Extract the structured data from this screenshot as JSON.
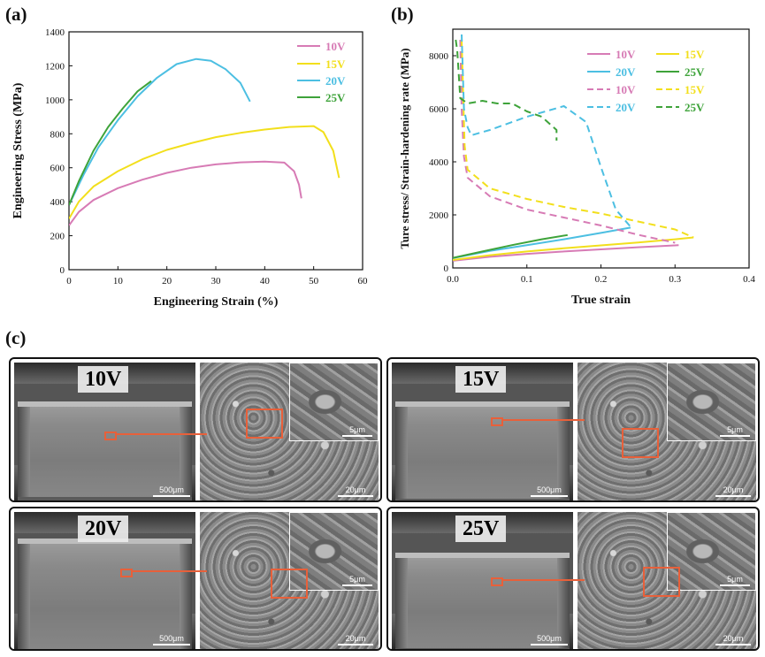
{
  "panels": {
    "a": {
      "label": "(a)"
    },
    "b": {
      "label": "(b)"
    },
    "c": {
      "label": "(c)"
    }
  },
  "colors": {
    "10V": "#d77bb5",
    "15V": "#f2df1c",
    "20V": "#4cbfe2",
    "25V": "#3ea33a",
    "orange": "#e8603a"
  },
  "chart_data": [
    {
      "type": "line",
      "xlabel": "Engineering Strain (%)",
      "ylabel": "Engineering Stress (MPa)",
      "xlim": [
        0,
        60
      ],
      "ylim": [
        0,
        1400
      ],
      "xticks": [
        "0",
        "10",
        "20",
        "30",
        "40",
        "50",
        "60"
      ],
      "yticks": [
        "0",
        "200",
        "400",
        "600",
        "800",
        "1000",
        "1200",
        "1400"
      ],
      "legend": "top-right",
      "series": [
        {
          "name": "10V",
          "x": [
            0,
            2,
            5,
            10,
            15,
            20,
            25,
            30,
            35,
            40,
            44,
            46,
            47,
            47.5
          ],
          "y": [
            260,
            340,
            410,
            480,
            530,
            570,
            600,
            620,
            632,
            636,
            630,
            580,
            500,
            420
          ]
        },
        {
          "name": "15V",
          "x": [
            0,
            2,
            5,
            10,
            15,
            20,
            25,
            30,
            35,
            40,
            45,
            50,
            52,
            54,
            55.2
          ],
          "y": [
            300,
            400,
            490,
            580,
            650,
            705,
            745,
            780,
            805,
            825,
            840,
            845,
            810,
            700,
            540
          ]
        },
        {
          "name": "20V",
          "x": [
            0,
            3,
            6,
            10,
            14,
            18,
            22,
            26,
            29,
            32,
            35,
            37
          ],
          "y": [
            380,
            560,
            720,
            880,
            1020,
            1130,
            1210,
            1240,
            1230,
            1180,
            1100,
            990
          ]
        },
        {
          "name": "25V",
          "x": [
            0,
            2,
            5,
            8,
            11,
            14,
            16.8
          ],
          "y": [
            380,
            520,
            700,
            840,
            950,
            1050,
            1110
          ]
        }
      ]
    },
    {
      "type": "line",
      "xlabel": "True strain",
      "ylabel": "Ture stress/ Strain-hardening rate (MPa)",
      "xlim": [
        0,
        0.4
      ],
      "ylim": [
        0,
        9000
      ],
      "xticks": [
        "0.0",
        "0.1",
        "0.2",
        "0.3",
        "0.4"
      ],
      "yticks": [
        "0",
        "2000",
        "4000",
        "6000",
        "8000"
      ],
      "legend": "top-right",
      "series": [
        {
          "name": "10V",
          "style": "solid",
          "x": [
            0,
            0.05,
            0.1,
            0.15,
            0.2,
            0.25,
            0.3,
            0.305
          ],
          "y": [
            270,
            420,
            530,
            620,
            700,
            780,
            850,
            860
          ]
        },
        {
          "name": "15V",
          "style": "solid",
          "x": [
            0,
            0.05,
            0.1,
            0.15,
            0.2,
            0.25,
            0.3,
            0.325
          ],
          "y": [
            300,
            480,
            620,
            740,
            850,
            960,
            1080,
            1150
          ]
        },
        {
          "name": "20V",
          "style": "solid",
          "x": [
            0,
            0.05,
            0.1,
            0.15,
            0.2,
            0.24
          ],
          "y": [
            370,
            640,
            860,
            1080,
            1320,
            1520
          ]
        },
        {
          "name": "25V",
          "style": "solid",
          "x": [
            0,
            0.04,
            0.08,
            0.12,
            0.155
          ],
          "y": [
            380,
            620,
            860,
            1080,
            1240
          ]
        },
        {
          "name": "10V",
          "style": "dashed",
          "x": [
            0.01,
            0.012,
            0.015,
            0.02,
            0.05,
            0.1,
            0.15,
            0.2,
            0.25,
            0.3
          ],
          "y": [
            8600,
            6000,
            4200,
            3400,
            2700,
            2200,
            1900,
            1600,
            1250,
            950
          ]
        },
        {
          "name": "15V",
          "style": "dashed",
          "x": [
            0.012,
            0.014,
            0.016,
            0.02,
            0.05,
            0.1,
            0.15,
            0.2,
            0.25,
            0.3,
            0.325
          ],
          "y": [
            8600,
            6500,
            4600,
            3700,
            3000,
            2600,
            2300,
            2050,
            1750,
            1450,
            1150
          ]
        },
        {
          "name": "20V",
          "style": "dashed",
          "x": [
            0.012,
            0.015,
            0.02,
            0.025,
            0.05,
            0.1,
            0.15,
            0.18,
            0.2,
            0.22,
            0.24
          ],
          "y": [
            8800,
            6000,
            5300,
            5000,
            5200,
            5700,
            6100,
            5500,
            3800,
            2200,
            1550
          ]
        },
        {
          "name": "25V",
          "style": "dashed",
          "x": [
            0.004,
            0.006,
            0.01,
            0.02,
            0.04,
            0.06,
            0.08,
            0.1,
            0.12,
            0.14,
            0.14
          ],
          "y": [
            8600,
            8200,
            6400,
            6200,
            6300,
            6200,
            6200,
            5900,
            5700,
            5200,
            4800
          ]
        }
      ]
    }
  ],
  "fractography": [
    {
      "label": "10V",
      "macro_scale": "500μm",
      "fine_scale": "20μm",
      "inset_scale": "5μm"
    },
    {
      "label": "15V",
      "macro_scale": "500μm",
      "fine_scale": "20μm",
      "inset_scale": "5μm"
    },
    {
      "label": "20V",
      "macro_scale": "500μm",
      "fine_scale": "20μm",
      "inset_scale": "5μm"
    },
    {
      "label": "25V",
      "macro_scale": "500μm",
      "fine_scale": "20μm",
      "inset_scale": "5μm"
    }
  ]
}
